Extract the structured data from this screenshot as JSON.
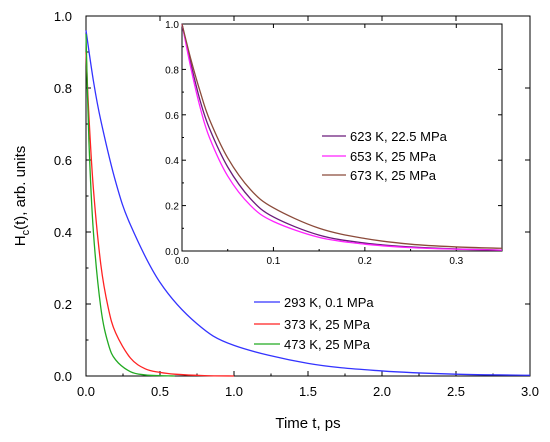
{
  "chart_data": [
    {
      "type": "line",
      "panel": "main",
      "xlabel": "Time t, ps",
      "ylabel_main": "H",
      "ylabel_sub": "c",
      "ylabel_rest": "(t), arb. units",
      "xlim": [
        0,
        3.0
      ],
      "ylim": [
        0,
        1.0
      ],
      "xticks": [
        "0.0",
        "0.5",
        "1.0",
        "1.5",
        "2.0",
        "2.5",
        "3.0"
      ],
      "yticks": [
        "0.0",
        "0.2",
        "0.4",
        "0.6",
        "0.8",
        "1.0"
      ],
      "legend_position": "lower-right",
      "series": [
        {
          "name": "293 K, 0.1 MPa",
          "color": "#3333ff",
          "x": [
            0,
            0.05,
            0.1,
            0.2,
            0.3,
            0.5,
            0.75,
            1.0,
            1.5,
            2.0,
            2.5,
            3.0
          ],
          "y": [
            0.96,
            0.82,
            0.71,
            0.54,
            0.42,
            0.26,
            0.145,
            0.085,
            0.035,
            0.014,
            0.005,
            0.002
          ]
        },
        {
          "name": "373 K, 25 MPa",
          "color": "#ff2222",
          "x": [
            0,
            0.02,
            0.05,
            0.1,
            0.15,
            0.2,
            0.3,
            0.4,
            0.5,
            0.6,
            0.8,
            1.0
          ],
          "y": [
            0.9,
            0.72,
            0.52,
            0.31,
            0.19,
            0.12,
            0.05,
            0.02,
            0.01,
            0.005,
            0.001,
            0.0
          ]
        },
        {
          "name": "473 K, 25 MPa",
          "color": "#22aa22",
          "x": [
            0,
            0.02,
            0.05,
            0.1,
            0.15,
            0.2,
            0.3,
            0.4,
            0.5,
            0.6
          ],
          "y": [
            0.95,
            0.65,
            0.4,
            0.19,
            0.09,
            0.045,
            0.012,
            0.003,
            0.001,
            0.0
          ]
        }
      ]
    },
    {
      "type": "line",
      "panel": "inset",
      "xlim": [
        0,
        0.35
      ],
      "ylim": [
        0,
        1.0
      ],
      "xticks": [
        "0.0",
        "0.1",
        "0.2",
        "0.3"
      ],
      "yticks": [
        "0.0",
        "0.2",
        "0.4",
        "0.6",
        "0.8",
        "1.0"
      ],
      "legend_position": "center-right",
      "series": [
        {
          "name": "623 K, 22.5 MPa",
          "color": "#6a1b7a",
          "x": [
            0,
            0.01,
            0.02,
            0.03,
            0.05,
            0.075,
            0.1,
            0.15,
            0.2,
            0.25,
            0.3,
            0.35
          ],
          "y": [
            1.0,
            0.82,
            0.66,
            0.54,
            0.37,
            0.23,
            0.15,
            0.07,
            0.035,
            0.018,
            0.009,
            0.004
          ]
        },
        {
          "name": "653 K, 25 MPa",
          "color": "#ff22ff",
          "x": [
            0,
            0.01,
            0.02,
            0.03,
            0.05,
            0.075,
            0.1,
            0.15,
            0.2,
            0.25,
            0.3,
            0.35
          ],
          "y": [
            1.0,
            0.8,
            0.63,
            0.5,
            0.33,
            0.2,
            0.13,
            0.06,
            0.03,
            0.015,
            0.008,
            0.004
          ]
        },
        {
          "name": "673 K, 25 MPa",
          "color": "#8b4a3a",
          "x": [
            0,
            0.01,
            0.02,
            0.03,
            0.05,
            0.075,
            0.1,
            0.15,
            0.2,
            0.25,
            0.3,
            0.35
          ],
          "y": [
            1.0,
            0.84,
            0.7,
            0.58,
            0.41,
            0.27,
            0.19,
            0.1,
            0.055,
            0.03,
            0.018,
            0.012
          ]
        }
      ]
    }
  ]
}
